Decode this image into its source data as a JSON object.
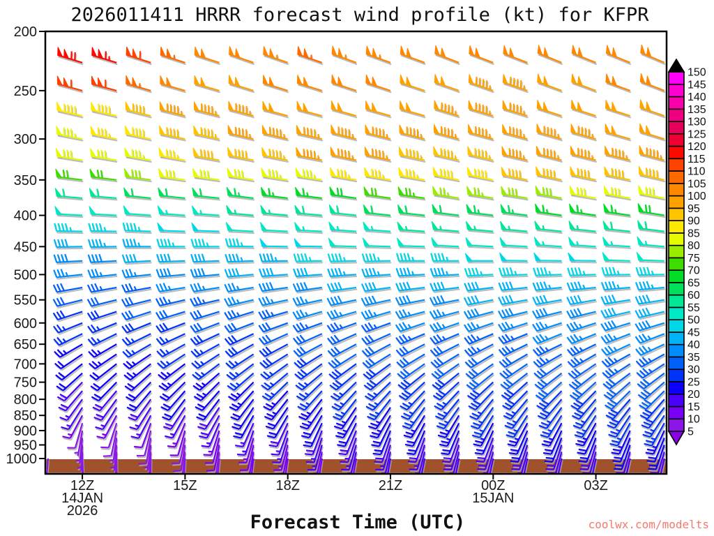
{
  "chart_data": {
    "type": "wind-barb-profile",
    "title": "2026011411 HRRR forecast wind profile (kt) for KFPR",
    "xlabel": "Forecast Time (UTC)",
    "y_unit": "hPa",
    "y_scale": "log-pressure",
    "y_ticks": [
      200,
      250,
      300,
      350,
      400,
      450,
      500,
      550,
      600,
      650,
      700,
      750,
      800,
      850,
      900,
      950,
      1000
    ],
    "x_ticks": [
      {
        "hour_offset": 1,
        "label": "12Z",
        "sub": [
          "14JAN",
          "2026"
        ]
      },
      {
        "hour_offset": 4,
        "label": "15Z",
        "sub": []
      },
      {
        "hour_offset": 7,
        "label": "18Z",
        "sub": []
      },
      {
        "hour_offset": 10,
        "label": "21Z",
        "sub": []
      },
      {
        "hour_offset": 13,
        "label": "00Z",
        "sub": [
          "15JAN"
        ]
      },
      {
        "hour_offset": 16,
        "label": "03Z",
        "sub": []
      }
    ],
    "time_hour_offsets": [
      1,
      2,
      3,
      4,
      5,
      6,
      7,
      8,
      9,
      10,
      11,
      12,
      13,
      14,
      15,
      16,
      17,
      18
    ],
    "pressure_levels": [
      225,
      250,
      275,
      300,
      325,
      350,
      375,
      400,
      425,
      450,
      475,
      500,
      525,
      550,
      575,
      600,
      625,
      650,
      675,
      700,
      725,
      750,
      775,
      800,
      825,
      850,
      875,
      900,
      925,
      950,
      975,
      1000
    ],
    "speeds_kt": [
      [
        118,
        115,
        110,
        105,
        101,
        102,
        104,
        105,
        104,
        103,
        102,
        101,
        100,
        100,
        100,
        100,
        101,
        102
      ],
      [
        112,
        110,
        105,
        100,
        98,
        99,
        101,
        102,
        101,
        100,
        99,
        98,
        97,
        97,
        98,
        99,
        100,
        101
      ],
      [
        88,
        89,
        92,
        95,
        96,
        97,
        98,
        99,
        99,
        98,
        98,
        97,
        97,
        97,
        98,
        98,
        99,
        99
      ],
      [
        84,
        85,
        88,
        91,
        93,
        95,
        96,
        97,
        97,
        97,
        96,
        96,
        96,
        96,
        97,
        97,
        98,
        98
      ],
      [
        80,
        81,
        84,
        87,
        90,
        92,
        94,
        95,
        95,
        95,
        94,
        94,
        94,
        95,
        95,
        96,
        96,
        96
      ],
      [
        70,
        72,
        78,
        80,
        81,
        82,
        83,
        84,
        85,
        86,
        87,
        88,
        89,
        90,
        90,
        91,
        92,
        92
      ],
      [
        58,
        59,
        60,
        61,
        62,
        63,
        65,
        67,
        69,
        71,
        73,
        75,
        77,
        78,
        79,
        80,
        81,
        82
      ],
      [
        50,
        51,
        52,
        53,
        54,
        55,
        57,
        58,
        59,
        60,
        61,
        62,
        63,
        64,
        65,
        66,
        67,
        68
      ],
      [
        45,
        46,
        47,
        48,
        49,
        50,
        52,
        53,
        54,
        54,
        55,
        55,
        56,
        56,
        57,
        57,
        58,
        58
      ],
      [
        42,
        43,
        44,
        45,
        46,
        47,
        48,
        49,
        50,
        50,
        51,
        51,
        52,
        52,
        53,
        53,
        54,
        54
      ],
      [
        38,
        39,
        40,
        41,
        42,
        43,
        44,
        45,
        46,
        46,
        47,
        47,
        48,
        48,
        49,
        49,
        50,
        50
      ],
      [
        35,
        36,
        37,
        38,
        39,
        40,
        41,
        42,
        43,
        43,
        44,
        44,
        45,
        45,
        46,
        46,
        47,
        47
      ],
      [
        32,
        33,
        34,
        35,
        36,
        37,
        38,
        39,
        40,
        40,
        41,
        41,
        42,
        42,
        43,
        43,
        44,
        44
      ],
      [
        30,
        31,
        32,
        33,
        34,
        35,
        36,
        37,
        38,
        38,
        39,
        39,
        40,
        40,
        41,
        41,
        42,
        42
      ],
      [
        28,
        29,
        30,
        31,
        32,
        33,
        34,
        35,
        36,
        36,
        37,
        37,
        38,
        38,
        39,
        39,
        40,
        40
      ],
      [
        27,
        27,
        28,
        29,
        30,
        31,
        32,
        33,
        34,
        34,
        35,
        35,
        36,
        36,
        37,
        37,
        38,
        38
      ],
      [
        25,
        26,
        26,
        27,
        28,
        29,
        30,
        31,
        32,
        32,
        33,
        33,
        34,
        34,
        35,
        35,
        36,
        36
      ],
      [
        24,
        24,
        25,
        26,
        27,
        28,
        29,
        30,
        31,
        31,
        32,
        32,
        33,
        33,
        34,
        34,
        35,
        35
      ],
      [
        22,
        23,
        24,
        25,
        26,
        27,
        28,
        29,
        30,
        30,
        31,
        31,
        32,
        32,
        33,
        33,
        34,
        34
      ],
      [
        21,
        22,
        23,
        24,
        25,
        26,
        27,
        28,
        29,
        29,
        30,
        30,
        31,
        31,
        32,
        32,
        33,
        33
      ],
      [
        20,
        21,
        22,
        23,
        24,
        25,
        26,
        27,
        28,
        28,
        29,
        29,
        30,
        30,
        31,
        31,
        32,
        32
      ],
      [
        19,
        20,
        21,
        22,
        23,
        24,
        25,
        26,
        27,
        27,
        28,
        28,
        29,
        29,
        30,
        30,
        31,
        31
      ],
      [
        18,
        19,
        20,
        21,
        22,
        23,
        24,
        25,
        26,
        26,
        27,
        27,
        28,
        28,
        29,
        29,
        30,
        30
      ],
      [
        17,
        18,
        19,
        20,
        21,
        22,
        23,
        24,
        25,
        25,
        26,
        26,
        27,
        27,
        28,
        28,
        29,
        29
      ],
      [
        15,
        16,
        17,
        18,
        19,
        21,
        22,
        23,
        24,
        24,
        25,
        25,
        26,
        26,
        27,
        27,
        28,
        28
      ],
      [
        13,
        14,
        15,
        17,
        18,
        20,
        21,
        22,
        23,
        23,
        24,
        24,
        25,
        25,
        26,
        26,
        27,
        27
      ],
      [
        8,
        9,
        11,
        13,
        15,
        17,
        19,
        20,
        21,
        22,
        22,
        23,
        23,
        23,
        24,
        24,
        25,
        25
      ],
      [
        7,
        8,
        9,
        11,
        13,
        15,
        17,
        18,
        19,
        20,
        20,
        21,
        21,
        21,
        22,
        22,
        23,
        23
      ],
      [
        6,
        7,
        8,
        9,
        11,
        13,
        15,
        16,
        17,
        18,
        18,
        19,
        19,
        20,
        20,
        20,
        21,
        21
      ],
      [
        6,
        6,
        7,
        8,
        10,
        12,
        14,
        15,
        16,
        17,
        17,
        18,
        18,
        18,
        19,
        19,
        20,
        20
      ],
      [
        5,
        6,
        6,
        7,
        9,
        11,
        13,
        14,
        15,
        16,
        16,
        17,
        17,
        17,
        18,
        18,
        19,
        19
      ],
      [
        5,
        5,
        6,
        7,
        8,
        10,
        12,
        13,
        14,
        15,
        15,
        16,
        16,
        16,
        17,
        17,
        18,
        18
      ]
    ],
    "dirs_deg": [
      [
        287,
        287,
        288,
        288,
        288,
        289,
        289,
        289,
        290,
        290,
        290,
        291,
        291,
        291,
        292,
        292,
        292,
        293
      ],
      [
        285,
        285,
        286,
        286,
        286,
        287,
        287,
        287,
        288,
        288,
        288,
        289,
        289,
        289,
        290,
        290,
        290,
        291
      ],
      [
        283,
        283,
        284,
        284,
        284,
        285,
        285,
        285,
        286,
        286,
        286,
        287,
        287,
        287,
        288,
        288,
        288,
        289
      ],
      [
        281,
        281,
        282,
        282,
        282,
        283,
        283,
        283,
        284,
        284,
        284,
        285,
        285,
        285,
        286,
        286,
        286,
        287
      ],
      [
        279,
        279,
        280,
        280,
        280,
        281,
        281,
        281,
        282,
        282,
        282,
        283,
        283,
        283,
        284,
        284,
        284,
        285
      ],
      [
        277,
        277,
        278,
        278,
        278,
        279,
        279,
        279,
        280,
        280,
        280,
        281,
        281,
        281,
        282,
        282,
        282,
        283
      ],
      [
        275,
        275,
        276,
        276,
        276,
        277,
        277,
        277,
        278,
        278,
        278,
        279,
        279,
        279,
        280,
        280,
        280,
        281
      ],
      [
        273,
        273,
        274,
        274,
        274,
        275,
        275,
        275,
        276,
        276,
        276,
        277,
        277,
        277,
        278,
        278,
        278,
        279
      ],
      [
        271,
        271,
        272,
        272,
        272,
        273,
        273,
        273,
        274,
        274,
        274,
        275,
        275,
        275,
        276,
        276,
        276,
        277
      ],
      [
        269,
        269,
        270,
        270,
        270,
        271,
        271,
        271,
        272,
        272,
        272,
        273,
        273,
        273,
        274,
        274,
        274,
        275
      ],
      [
        267,
        267,
        267,
        268,
        268,
        268,
        269,
        269,
        269,
        269,
        270,
        270,
        270,
        271,
        271,
        271,
        272,
        272
      ],
      [
        264,
        264,
        264,
        265,
        265,
        265,
        266,
        266,
        266,
        266,
        267,
        267,
        267,
        268,
        268,
        268,
        269,
        269
      ],
      [
        260,
        260,
        260,
        261,
        261,
        261,
        262,
        262,
        262,
        262,
        263,
        263,
        263,
        264,
        264,
        264,
        265,
        265
      ],
      [
        256,
        256,
        256,
        257,
        257,
        257,
        258,
        258,
        258,
        258,
        259,
        259,
        259,
        260,
        260,
        260,
        261,
        261
      ],
      [
        252,
        252,
        252,
        253,
        253,
        253,
        254,
        254,
        254,
        254,
        255,
        255,
        255,
        256,
        256,
        256,
        257,
        257
      ],
      [
        248,
        248,
        248,
        249,
        249,
        249,
        250,
        250,
        250,
        250,
        251,
        251,
        251,
        252,
        252,
        252,
        253,
        253
      ],
      [
        244,
        244,
        244,
        245,
        245,
        245,
        246,
        246,
        246,
        246,
        247,
        247,
        247,
        248,
        248,
        248,
        249,
        249
      ],
      [
        240,
        240,
        240,
        241,
        241,
        241,
        242,
        242,
        242,
        242,
        243,
        243,
        243,
        244,
        244,
        244,
        245,
        245
      ],
      [
        236,
        236,
        236,
        237,
        237,
        237,
        238,
        238,
        238,
        238,
        239,
        239,
        239,
        240,
        240,
        240,
        241,
        241
      ],
      [
        232,
        232,
        232,
        233,
        233,
        233,
        234,
        234,
        234,
        234,
        235,
        235,
        235,
        236,
        236,
        236,
        237,
        237
      ],
      [
        228,
        228,
        228,
        229,
        229,
        229,
        230,
        230,
        230,
        230,
        231,
        231,
        231,
        232,
        232,
        232,
        233,
        233
      ],
      [
        224,
        224,
        224,
        225,
        225,
        225,
        226,
        226,
        226,
        226,
        227,
        227,
        227,
        228,
        228,
        228,
        229,
        229
      ],
      [
        220,
        220,
        220,
        221,
        221,
        221,
        222,
        222,
        222,
        222,
        223,
        223,
        223,
        224,
        224,
        224,
        225,
        225
      ],
      [
        216,
        216,
        216,
        217,
        217,
        217,
        218,
        218,
        218,
        218,
        219,
        219,
        219,
        220,
        220,
        220,
        221,
        221
      ],
      [
        212,
        212,
        212,
        213,
        213,
        213,
        214,
        214,
        214,
        214,
        215,
        215,
        215,
        216,
        216,
        216,
        217,
        217
      ],
      [
        208,
        208,
        208,
        209,
        209,
        209,
        210,
        210,
        210,
        210,
        211,
        211,
        211,
        212,
        212,
        212,
        213,
        213
      ],
      [
        196,
        198,
        200,
        202,
        203,
        204,
        205,
        205,
        206,
        206,
        207,
        207,
        208,
        208,
        208,
        209,
        209,
        209
      ],
      [
        190,
        192,
        194,
        196,
        198,
        199,
        200,
        201,
        202,
        202,
        203,
        203,
        204,
        204,
        204,
        205,
        205,
        205
      ],
      [
        186,
        188,
        190,
        192,
        194,
        196,
        197,
        198,
        199,
        199,
        200,
        200,
        201,
        201,
        201,
        201,
        202,
        202
      ],
      [
        183,
        185,
        187,
        189,
        191,
        193,
        194,
        195,
        196,
        196,
        197,
        197,
        198,
        198,
        198,
        198,
        199,
        199
      ],
      [
        180,
        182,
        184,
        186,
        188,
        190,
        191,
        192,
        193,
        193,
        194,
        194,
        195,
        195,
        195,
        195,
        196,
        196
      ],
      [
        177,
        179,
        181,
        183,
        185,
        187,
        188,
        189,
        190,
        190,
        191,
        191,
        192,
        192,
        192,
        192,
        193,
        193
      ]
    ],
    "surface_extra_barb": {
      "hour_offset": 0,
      "pressure": 1000,
      "speed_kt": 5,
      "dir_deg": 185
    },
    "ground_color": "#A0522D",
    "barb_shadow_color": "#ABABAB",
    "colorbar": {
      "values": [
        5,
        10,
        15,
        20,
        25,
        30,
        35,
        40,
        45,
        50,
        55,
        60,
        65,
        70,
        75,
        80,
        85,
        90,
        95,
        100,
        105,
        110,
        115,
        120,
        125,
        130,
        135,
        140,
        145,
        150
      ],
      "box_colors_low_to_high": [
        "#8B16E8",
        "#7A00F5",
        "#4A00FA",
        "#0D00FA",
        "#0033FA",
        "#0061FA",
        "#008CFA",
        "#00B3F7",
        "#00D8E8",
        "#00E8C4",
        "#00E896",
        "#00E05A",
        "#00DC28",
        "#3FDC00",
        "#9CEC00",
        "#E6FA00",
        "#FFE800",
        "#FFC400",
        "#FFA200",
        "#FF8800",
        "#FF6A00",
        "#FF4200",
        "#FA0A00",
        "#EE0033",
        "#E6005C",
        "#EE0080",
        "#FA00A8",
        "#FF00D0",
        "#FF00F8"
      ],
      "below_min_color": "#8B00E8",
      "above_max_color": "#000000"
    },
    "watermark": {
      "text": "coolwx.com/modelts",
      "color": "#F4796F"
    }
  }
}
